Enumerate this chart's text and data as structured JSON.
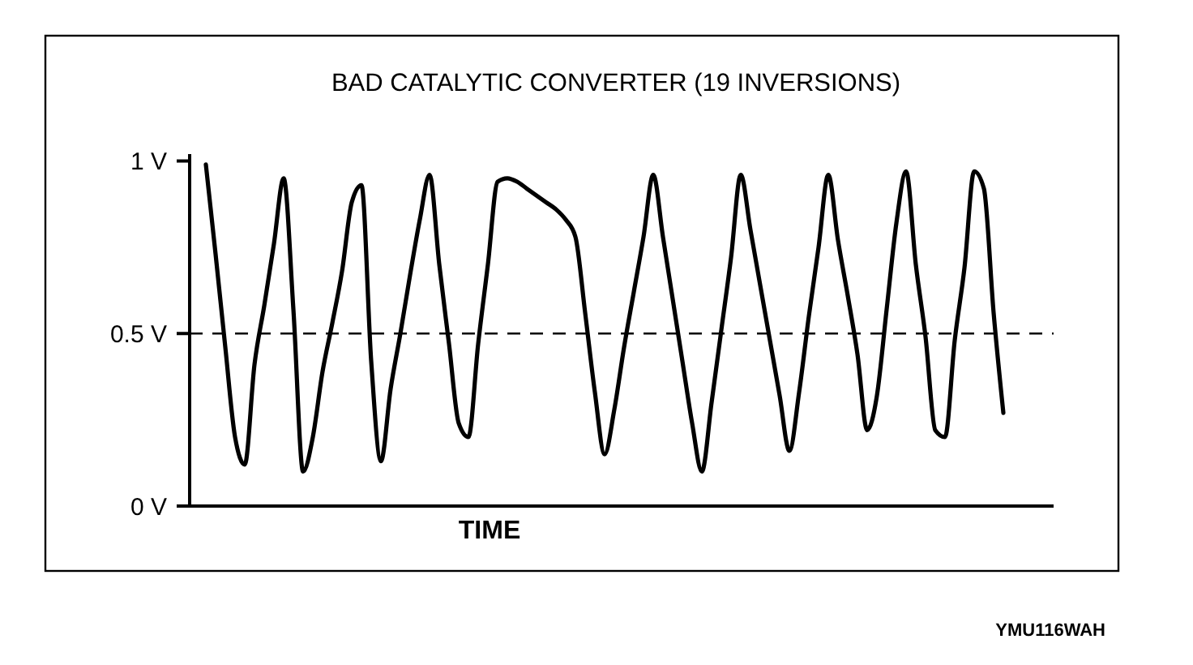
{
  "chart_data": {
    "type": "line",
    "title": "BAD CATALYTIC CONVERTER (19 INVERSIONS)",
    "xlabel": "TIME",
    "categories": [
      null,
      null,
      null,
      null,
      null,
      null,
      null,
      null,
      null,
      null,
      null,
      null,
      null,
      null,
      null,
      null,
      null,
      null,
      null,
      null,
      null,
      null,
      null,
      null,
      null,
      null,
      null,
      null,
      null,
      null,
      null,
      null,
      null,
      null,
      null,
      null,
      null,
      null,
      null,
      null,
      null,
      null,
      null,
      null,
      null,
      null,
      null,
      null,
      null,
      null,
      null,
      null,
      null,
      null,
      null,
      null,
      null,
      null,
      null,
      null,
      null,
      null,
      null,
      null,
      null,
      null,
      null,
      null,
      null,
      null,
      null,
      null,
      null,
      null,
      null,
      null,
      null,
      null,
      null,
      null,
      null,
      null,
      null
    ],
    "series": [
      {
        "color": "#000000",
        "values": [
          0.99,
          0.73,
          0.46,
          0.2,
          0.12,
          0.41,
          0.58,
          0.76,
          0.95,
          0.57,
          0.1,
          0.2,
          0.39,
          0.53,
          0.68,
          0.88,
          0.93,
          0.42,
          0.13,
          0.34,
          0.5,
          0.67,
          0.83,
          0.96,
          0.7,
          0.47,
          0.24,
          0.2,
          0.47,
          0.7,
          0.94,
          0.95,
          0.94,
          0.92,
          0.9,
          0.88,
          0.86,
          0.83,
          0.78,
          0.56,
          0.33,
          0.15,
          0.28,
          0.46,
          0.62,
          0.78,
          0.96,
          0.78,
          0.6,
          0.42,
          0.24,
          0.1,
          0.3,
          0.51,
          0.72,
          0.96,
          0.8,
          0.64,
          0.48,
          0.32,
          0.16,
          0.33,
          0.55,
          0.75,
          0.96,
          0.77,
          0.61,
          0.44,
          0.22,
          0.32,
          0.57,
          0.82,
          0.97,
          0.7,
          0.49,
          0.22,
          0.2,
          0.48,
          0.69,
          0.97,
          0.92,
          0.56,
          0.27
        ]
      }
    ],
    "ylim": [
      0,
      1.02
    ],
    "yticks": [
      {
        "value": 0,
        "label": "0 V"
      },
      {
        "value": 0.5,
        "label": "0.5 V"
      },
      {
        "value": 1,
        "label": "1 V"
      }
    ],
    "tick_labels": "y",
    "grid": false,
    "marker": "none",
    "line_style": "solid",
    "ref_lines": [
      {
        "axis": "y",
        "value": 0.5,
        "line_style": "dashed",
        "color": "#000000"
      }
    ],
    "annotations": [
      "YMU116WAH"
    ]
  }
}
